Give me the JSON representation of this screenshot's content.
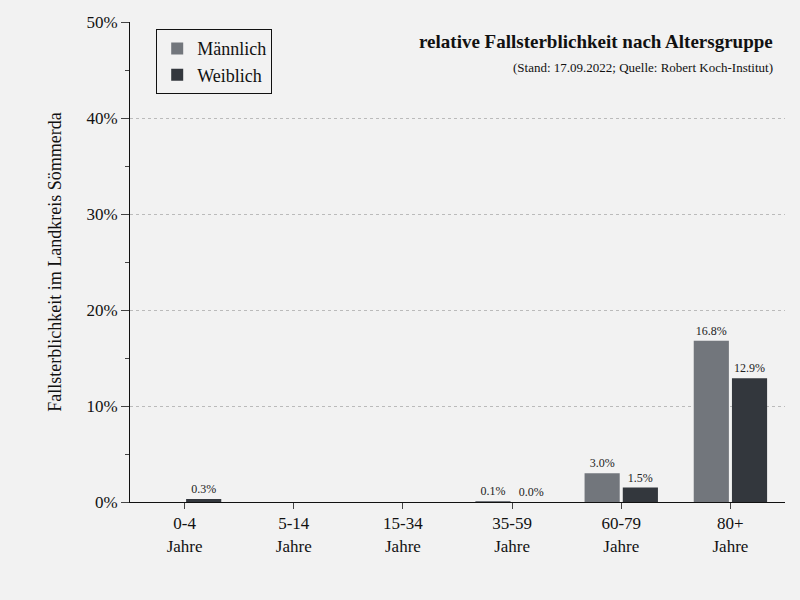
{
  "chart_data": {
    "type": "bar",
    "title": "relative Fallsterblichkeit nach Altersgruppe",
    "subtitle": "(Stand: 17.09.2022; Quelle: Robert Koch-Institut)",
    "y_label": "Fallsterblichkeit im Landkreis Sömmerda",
    "categories": [
      "0-4\nJahre",
      "5-14\nJahre",
      "15-34\nJahre",
      "35-59\nJahre",
      "60-79\nJahre",
      "80+\nJahre"
    ],
    "series": [
      {
        "name": "Männlich",
        "color": "#72767c",
        "values": [
          null,
          null,
          null,
          0.1,
          3.0,
          16.8
        ],
        "value_labels": [
          null,
          null,
          null,
          "0.1%",
          "3.0%",
          "16.8%"
        ]
      },
      {
        "name": "Weiblich",
        "color": "#33373d",
        "values": [
          0.3,
          null,
          null,
          0.0,
          1.5,
          12.9
        ],
        "value_labels": [
          "0.3%",
          null,
          null,
          "0.0%",
          "1.5%",
          "12.9%"
        ]
      }
    ],
    "ylim": [
      0,
      50
    ],
    "yticks": [
      {
        "value": 0,
        "label": "0%"
      },
      {
        "value": 10,
        "label": "10%"
      },
      {
        "value": 20,
        "label": "20%"
      },
      {
        "value": 30,
        "label": "30%"
      },
      {
        "value": 40,
        "label": "40%"
      },
      {
        "value": 50,
        "label": "50%"
      }
    ],
    "grid": true,
    "legend": "upper left",
    "data_labels": true
  }
}
